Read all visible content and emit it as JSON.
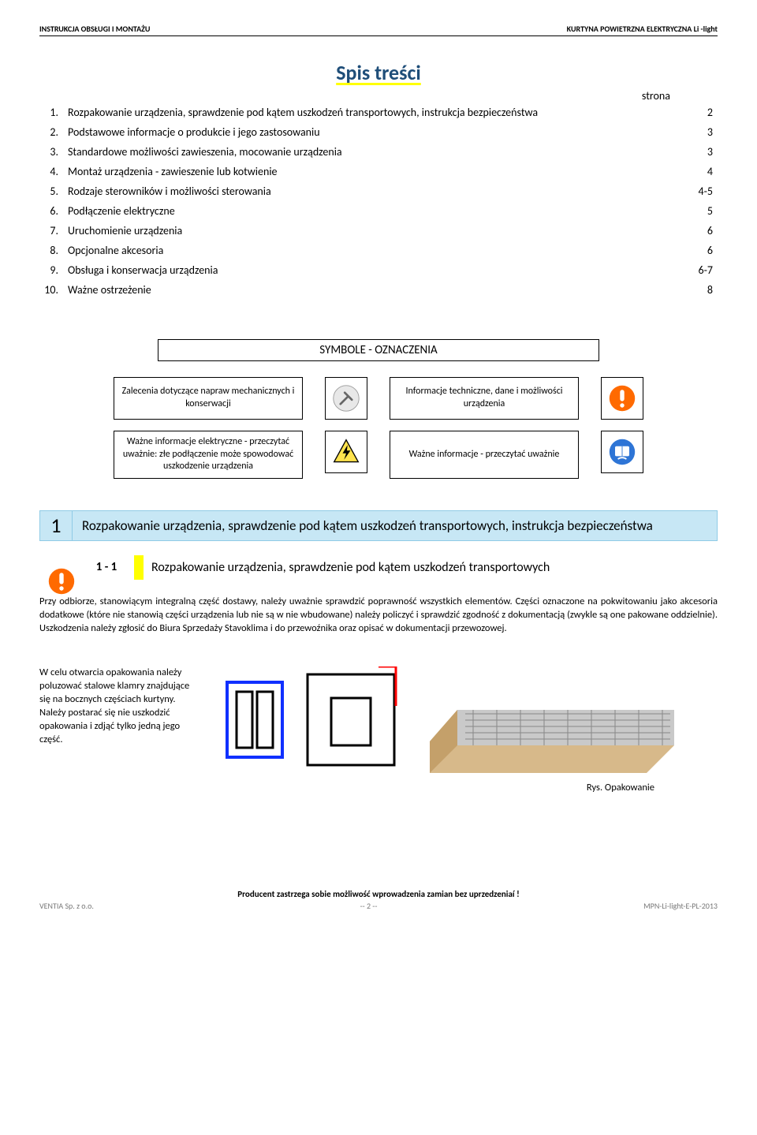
{
  "header": {
    "left": "INSTRUKCJA OBSŁUGI I MONTAŻU",
    "right": "KURTYNA POWIETRZNA ELEKTRYCZNA Li -light"
  },
  "toc": {
    "title": "Spis treści",
    "strona_label": "strona",
    "items": [
      {
        "n": "1.",
        "t": "Rozpakowanie urządzenia, sprawdzenie pod kątem uszkodzeń transportowych, instrukcja bezpieczeństwa",
        "p": "2"
      },
      {
        "n": "2.",
        "t": "Podstawowe informacje o produkcie i jego zastosowaniu",
        "p": "3"
      },
      {
        "n": "3.",
        "t": "Standardowe możliwości zawieszenia, mocowanie urządzenia",
        "p": "3"
      },
      {
        "n": "4.",
        "t": "Montaż urządzenia - zawieszenie lub kotwienie",
        "p": "4"
      },
      {
        "n": "5.",
        "t": "Rodzaje sterowników i możliwości sterowania",
        "p": "4-5"
      },
      {
        "n": "6.",
        "t": "Podłączenie elektryczne",
        "p": "5"
      },
      {
        "n": "7.",
        "t": "Uruchomienie urządzenia",
        "p": "6"
      },
      {
        "n": "8.",
        "t": "Opcjonalne akcesoria",
        "p": "6"
      },
      {
        "n": "9.",
        "t": "Obsługa i konserwacja urządzenia",
        "p": "6-7"
      },
      {
        "n": "10.",
        "t": "Ważne ostrzeżenie",
        "p": "8"
      }
    ]
  },
  "symbols": {
    "header": "SYMBOLE - OZNACZENIA",
    "row1": {
      "left": "Zalecenia dotyczące napraw mechanicznych i konserwacji",
      "right": "Informacje techniczne, dane i możliwości urządzenia"
    },
    "row2": {
      "left": "Ważne informacje elektryczne - przeczytać uważnie: złe podłączenie może spowodować uszkodzenie urządzenia",
      "right": "Ważne informacje - przeczytać uważnie"
    }
  },
  "section1": {
    "num": "1",
    "title": "Rozpakowanie urządzenia, sprawdzenie pod kątem uszkodzeń transportowych, instrukcja bezpieczeństwa",
    "sub_num": "1 - 1",
    "sub_title": "Rozpakowanie urządzenia, sprawdzenie pod kątem uszkodzeń transportowych",
    "body": "Przy odbiorze, stanowiącym integralną część dostawy, należy uważnie sprawdzić poprawność wszystkich elementów. Części oznaczone na pokwitowaniu jako akcesoria dodatkowe  (które nie stanowią części urządzenia lub nie są w nie wbudowane) należy policzyć i sprawdzić zgodność z dokumentacją (zwykle są one pakowane oddzielnie). Uszkodzenia należy zgłosić do Biura Sprzedaży Stavoklima i do przewoźnika oraz opisać w dokumentacji przewozowej.",
    "opening_text": "W celu otwarcia opakowania należy poluzować stalowe klamry znajdujące się na bocznych częściach kurtyny. Należy postarać się nie uszkodzić opakowania i zdjąć tylko jedną jego część.",
    "rys": "Rys.  Opakowanie"
  },
  "footer": {
    "line1": "Producent zastrzega sobie możliwość wprowadzenia zamian bez uprzedzeniaí !",
    "left": "VENTIA Sp.  z o.o.",
    "center": "-- 2 --",
    "right": "MPN-Li-light-E-PL-2013"
  },
  "colors": {
    "toc_title": "#1f4e79",
    "section_bg": "#c7e7f5",
    "section_border": "#8fcbe6",
    "highlight": "#ffff00",
    "warn_orange": "#ff6a00",
    "warn_blue": "#2e75d6",
    "diagram_blue": "#1030ff",
    "diagram_red": "#ff0000"
  }
}
